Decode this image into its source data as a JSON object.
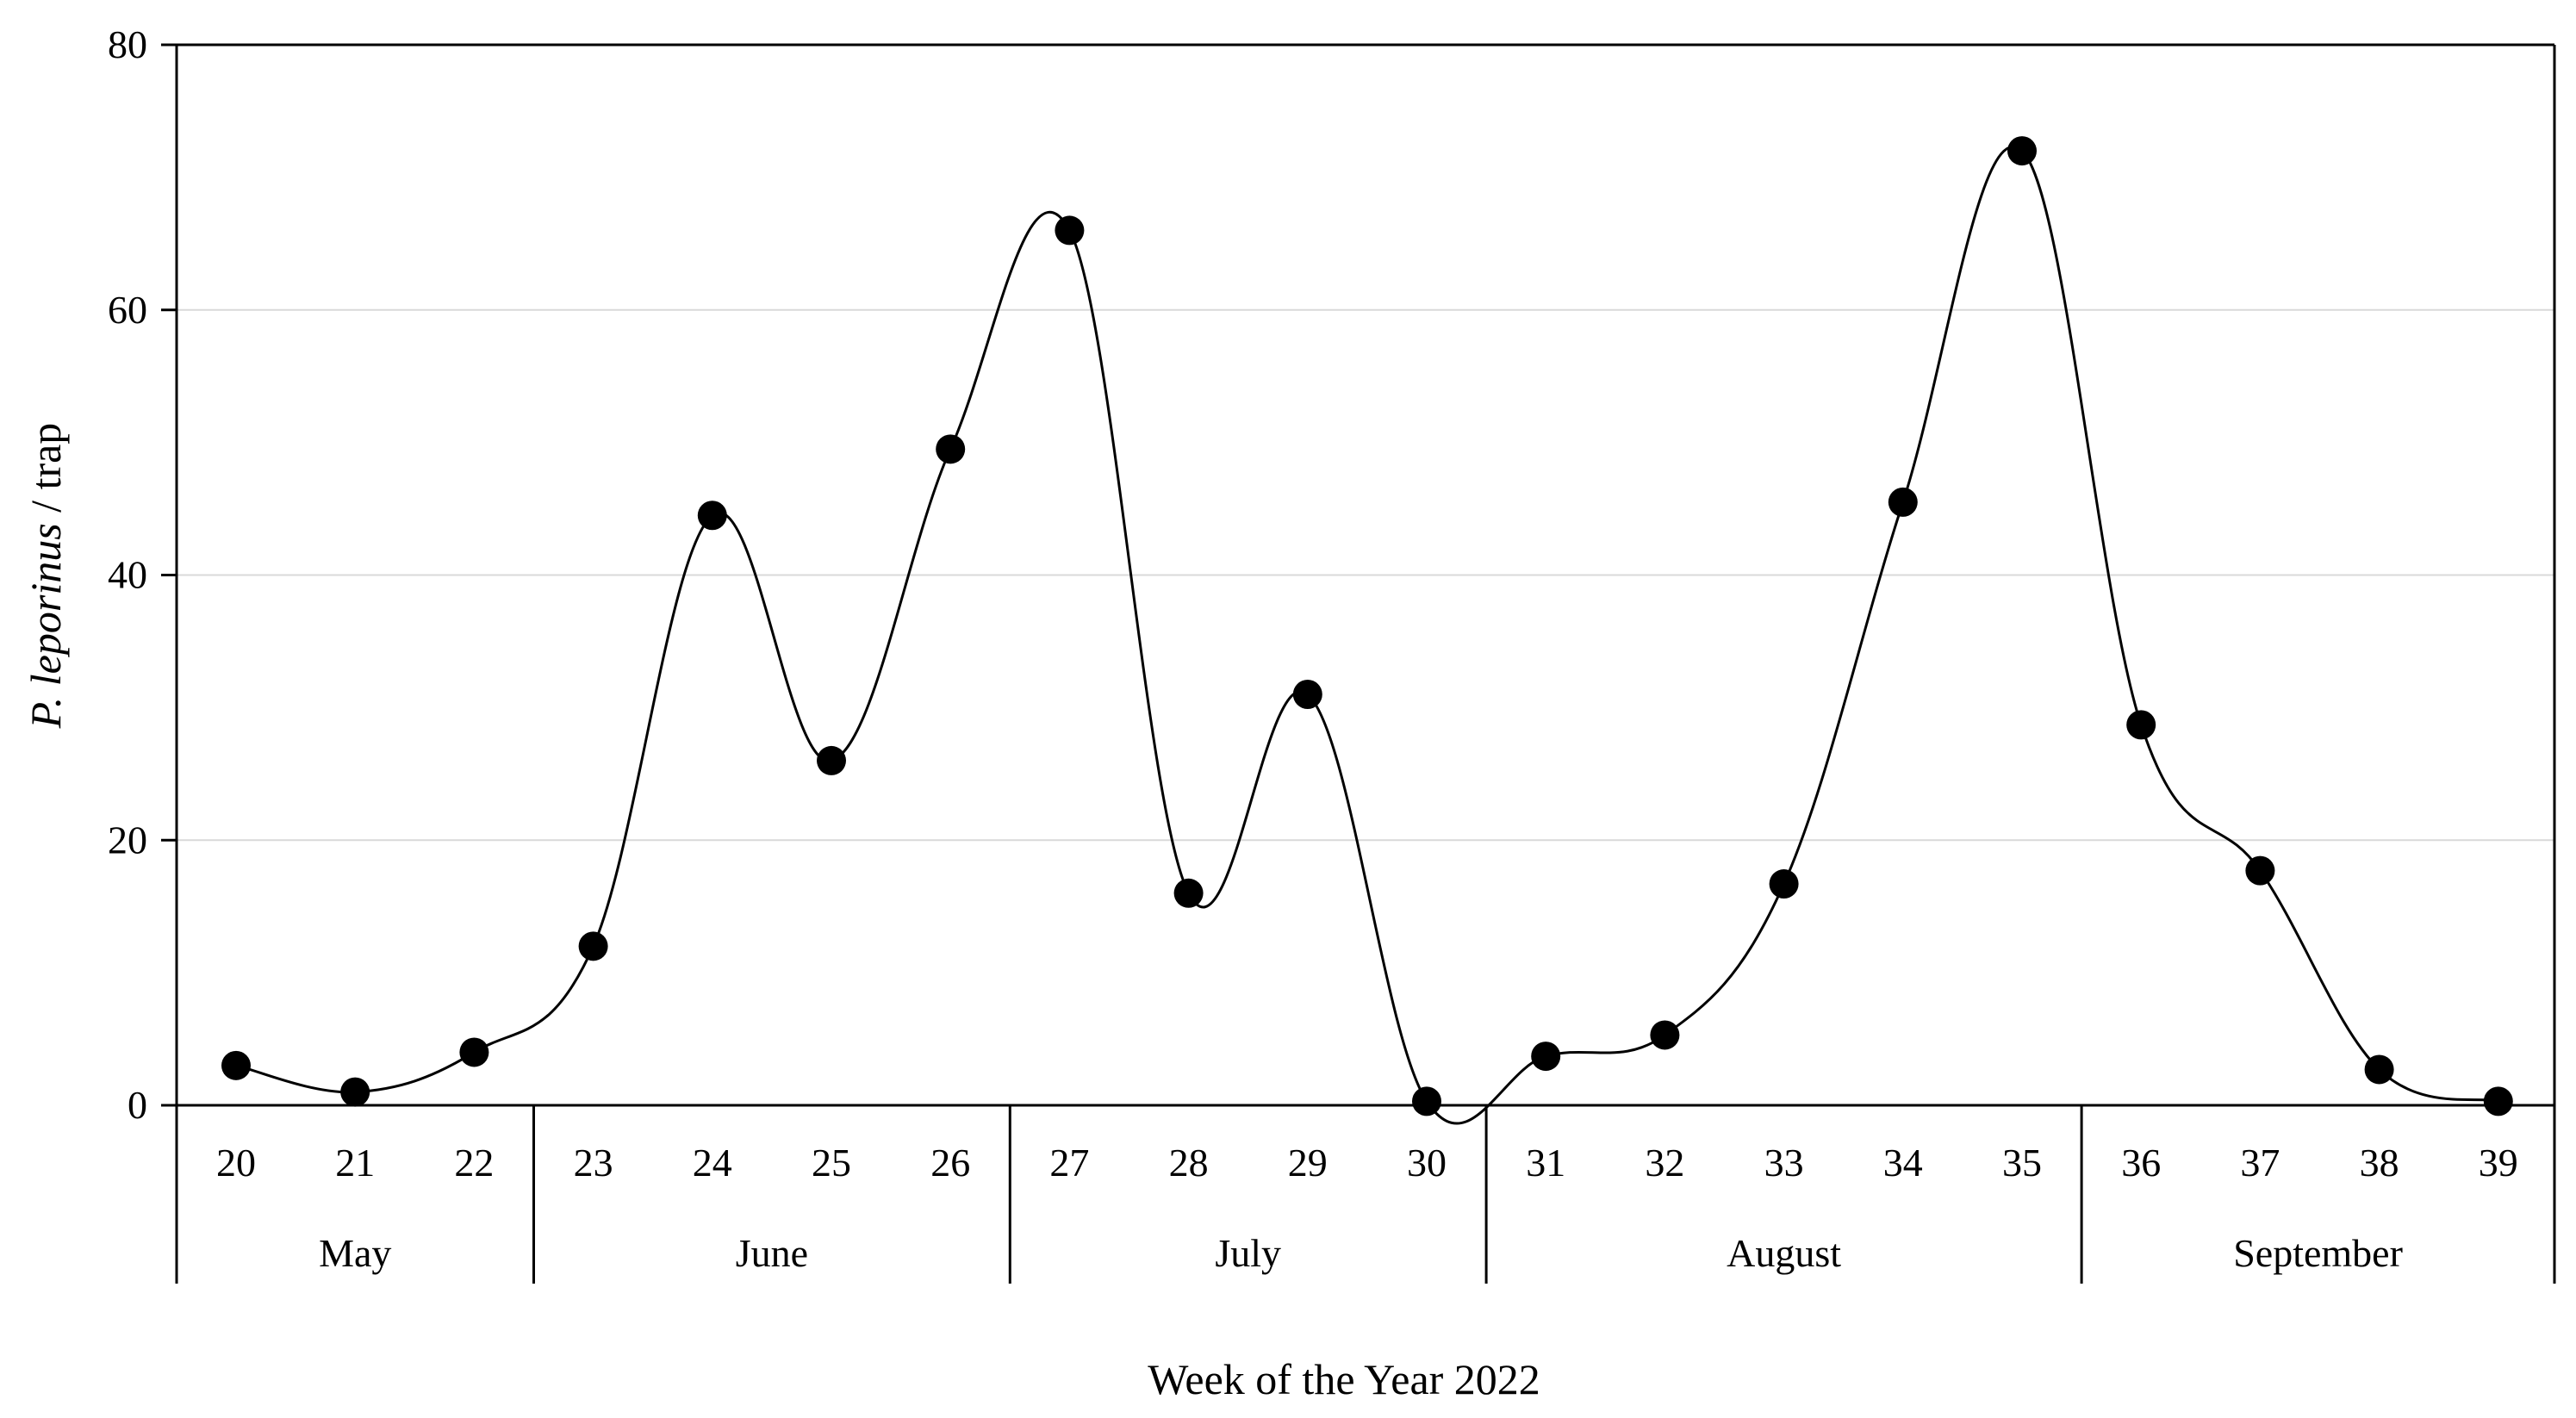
{
  "chart_data": {
    "type": "line",
    "title": "",
    "xlabel": "Week of the Year 2022",
    "ylabel_italic": "P. leporinus",
    "ylabel_rest": " / trap",
    "ylim": [
      0,
      80
    ],
    "yticks": [
      0,
      20,
      40,
      60,
      80
    ],
    "grid": "horizontal",
    "legend": "none",
    "series_color": "#000000",
    "x": [
      20,
      21,
      22,
      23,
      24,
      25,
      26,
      27,
      28,
      29,
      30,
      31,
      32,
      33,
      34,
      35,
      36,
      37,
      38,
      39
    ],
    "y": [
      3,
      1,
      4,
      12,
      44.5,
      26,
      49.5,
      66,
      16,
      31,
      0.3,
      3.7,
      5.3,
      16.7,
      45.5,
      72,
      28.7,
      17.7,
      2.7,
      0.3
    ],
    "months": [
      {
        "name": "May",
        "weeks": [
          20,
          22
        ]
      },
      {
        "name": "June",
        "weeks": [
          23,
          26
        ]
      },
      {
        "name": "July",
        "weeks": [
          27,
          30
        ]
      },
      {
        "name": "August",
        "weeks": [
          31,
          35
        ]
      },
      {
        "name": "September",
        "weeks": [
          36,
          39
        ]
      }
    ]
  }
}
